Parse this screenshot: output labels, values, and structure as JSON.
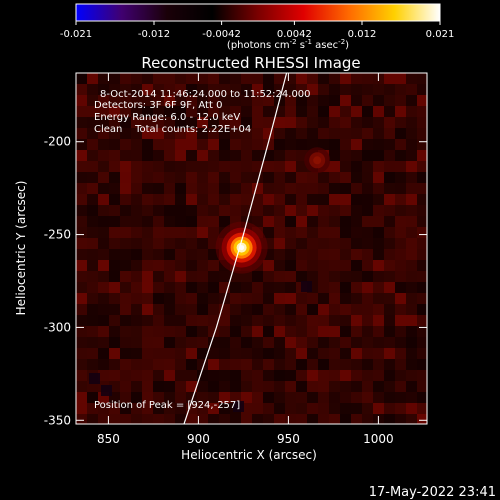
{
  "colorbar": {
    "ticks": [
      "-0.021",
      "-0.012",
      "-0.0042",
      "0.0042",
      "0.012",
      "0.021"
    ],
    "tick_values": [
      -0.021,
      -0.012,
      -0.0042,
      0.0042,
      0.012,
      0.021
    ],
    "range": [
      -0.021,
      0.021
    ],
    "units_main": "(photons cm",
    "units_exp1": "-2",
    "units_mid": " s",
    "units_exp2": "-1",
    "units_end": " asec",
    "units_exp3": "-2",
    "units_close": ")"
  },
  "title": "Reconstructed RHESSI Image",
  "info": {
    "time": "8-Oct-2014 11:46:24.000 to 11:52:24.000",
    "detectors": "Detectors: 3F 6F 9F, Att 0",
    "energy": "Energy Range: 6.0 - 12.0 keV",
    "counts": "Clean    Total counts: 2.22E+04"
  },
  "peak_text": "Position of Peak = [924,-257]",
  "timestamp": "17-May-2022 23:41",
  "chart_data": {
    "type": "heatmap",
    "title": "Reconstructed RHESSI Image",
    "xlabel": "Heliocentric X (arcsec)",
    "ylabel": "Heliocentric Y (arcsec)",
    "xlim": [
      832,
      1027
    ],
    "ylim": [
      -352,
      -163
    ],
    "x_ticks": [
      850,
      900,
      950,
      1000
    ],
    "x_tick_labels": [
      "850",
      "900",
      "950",
      "1000"
    ],
    "y_ticks": [
      -200,
      -250,
      -300,
      -350
    ],
    "y_tick_labels": [
      "-200",
      "-250",
      "-300",
      "-350"
    ],
    "peak": {
      "x": 924,
      "y": -257,
      "value": 0.021
    },
    "secondary_source": {
      "x": 966,
      "y": -210,
      "value": 0.006
    },
    "limb": [
      [
        892,
        -352
      ],
      [
        910,
        -300
      ],
      [
        925,
        -250
      ],
      [
        939,
        -200
      ],
      [
        949,
        -163
      ]
    ],
    "colormap": [
      "#0000ff",
      "#400070",
      "#1a0008",
      "#000000",
      "#7a0000",
      "#e00000",
      "#ff6a00",
      "#ffd000",
      "#ffffff"
    ]
  }
}
